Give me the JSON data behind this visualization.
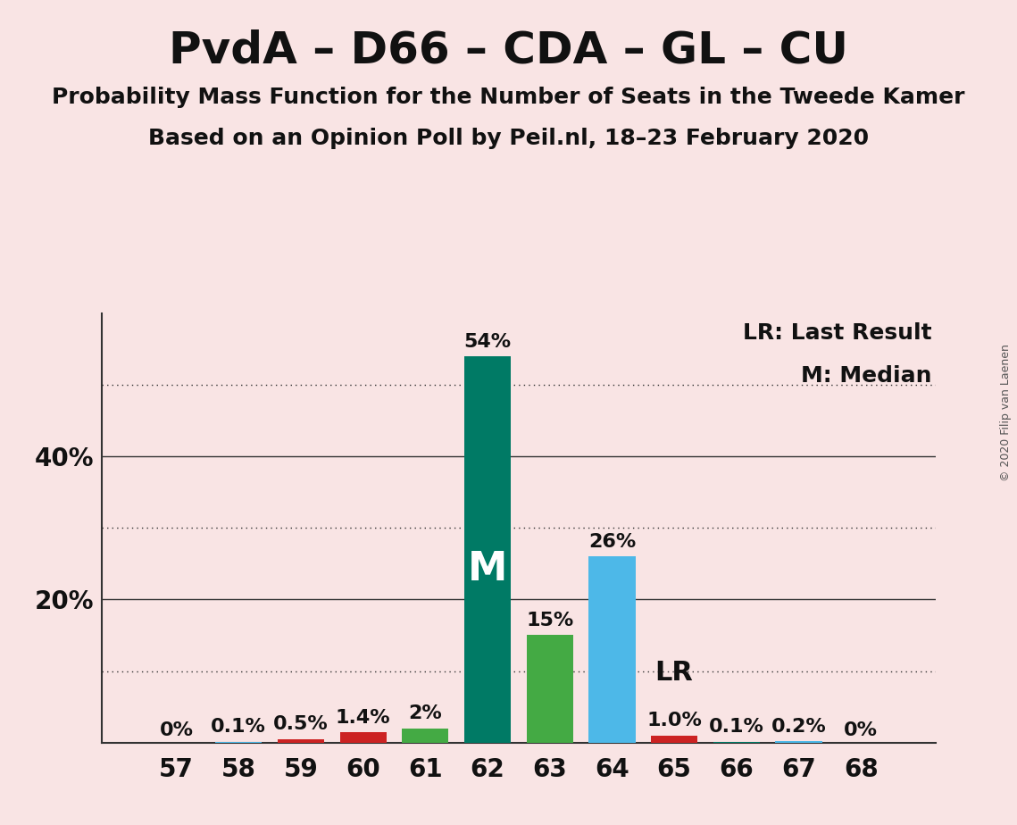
{
  "title": "PvdA – D66 – CDA – GL – CU",
  "subtitle1": "Probability Mass Function for the Number of Seats in the Tweede Kamer",
  "subtitle2": "Based on an Opinion Poll by Peil.nl, 18–23 February 2020",
  "copyright": "© 2020 Filip van Laenen",
  "seats": [
    57,
    58,
    59,
    60,
    61,
    62,
    63,
    64,
    65,
    66,
    67,
    68
  ],
  "values": [
    0.0,
    0.1,
    0.5,
    1.4,
    2.0,
    54.0,
    15.0,
    26.0,
    1.0,
    0.1,
    0.2,
    0.0
  ],
  "labels": [
    "0%",
    "0.1%",
    "0.5%",
    "1.4%",
    "2%",
    "54%",
    "15%",
    "26%",
    "1.0%",
    "0.1%",
    "0.2%",
    "0%"
  ],
  "bar_colors": [
    "#f5c0c0",
    "#4db8e8",
    "#cc2222",
    "#cc2222",
    "#44aa44",
    "#007a65",
    "#44aa44",
    "#4db8e8",
    "#cc2222",
    "#007a65",
    "#4db8e8",
    "#f5c0c0"
  ],
  "median_seat": 62,
  "last_result_seat": 65,
  "background_color": "#f9e4e4",
  "ylim_max": 60,
  "dotted_gridlines": [
    10,
    30,
    50
  ],
  "solid_gridlines": [
    20,
    40
  ],
  "title_fontsize": 36,
  "subtitle_fontsize": 18,
  "tick_fontsize": 20,
  "label_fontsize": 16,
  "median_label_fontsize": 32,
  "lr_label_fontsize": 22,
  "legend_fontsize": 18,
  "copyright_fontsize": 9
}
